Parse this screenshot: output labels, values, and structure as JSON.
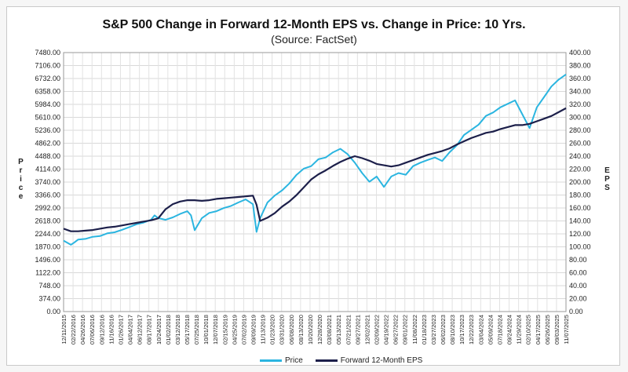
{
  "chart_data": {
    "type": "line",
    "title": "S&P 500 Change in Forward 12-Month EPS vs. Change in Price: 10 Yrs.",
    "subtitle": "(Source: FactSet)",
    "ylabel_left": "Price",
    "ylabel_right": "EPS",
    "ylim_left": [
      0,
      7480
    ],
    "ylim_right": [
      0,
      400
    ],
    "y_ticks_left": [
      "7480.00",
      "7106.00",
      "6732.00",
      "6358.00",
      "5984.00",
      "5610.00",
      "5236.00",
      "4862.00",
      "4488.00",
      "4114.00",
      "3740.00",
      "3366.00",
      "2992.00",
      "2618.00",
      "2244.00",
      "1870.00",
      "1496.00",
      "1122.00",
      "748.00",
      "374.00",
      "0.00"
    ],
    "y_ticks_right": [
      "400.00",
      "380.00",
      "360.00",
      "340.00",
      "320.00",
      "300.00",
      "280.00",
      "260.00",
      "240.00",
      "220.00",
      "200.00",
      "180.00",
      "160.00",
      "140.00",
      "120.00",
      "100.00",
      "80.00",
      "60.00",
      "40.00",
      "20.00",
      "0.00"
    ],
    "x_ticks": [
      "12/11/2015",
      "02/22/2016",
      "04/26/2016",
      "07/06/2016",
      "09/12/2016",
      "11/16/2016",
      "01/26/2017",
      "04/04/2017",
      "06/12/2017",
      "08/17/2017",
      "10/24/2017",
      "01/02/2018",
      "03/12/2018",
      "05/17/2018",
      "07/25/2018",
      "10/01/2018",
      "12/07/2018",
      "02/15/2019",
      "04/25/2019",
      "07/02/2019",
      "09/09/2019",
      "11/13/2019",
      "01/23/2020",
      "03/31/2020",
      "06/08/2020",
      "08/13/2020",
      "10/20/2020",
      "12/28/2020",
      "03/08/2021",
      "05/13/2021",
      "07/21/2021",
      "09/27/2021",
      "12/02/2021",
      "02/09/2022",
      "04/19/2022",
      "06/27/2022",
      "09/01/2022",
      "11/08/2022",
      "01/18/2023",
      "03/27/2023",
      "06/02/2023",
      "08/10/2023",
      "10/17/2023",
      "12/22/2023",
      "03/04/2024",
      "05/09/2024",
      "07/18/2024",
      "09/24/2024",
      "11/29/2024",
      "02/10/2025",
      "04/17/2025",
      "06/26/2025",
      "09/03/2025",
      "11/07/2025"
    ],
    "grid": true,
    "legend_placement": "bottom",
    "series": [
      {
        "name": "Price",
        "axis": "left",
        "color": "#2bb5e0",
        "points": [
          [
            0,
            2050
          ],
          [
            1,
            1930
          ],
          [
            1.5,
            2000
          ],
          [
            2,
            2080
          ],
          [
            3,
            2100
          ],
          [
            4,
            2160
          ],
          [
            5,
            2180
          ],
          [
            6,
            2260
          ],
          [
            7,
            2290
          ],
          [
            8,
            2360
          ],
          [
            9,
            2440
          ],
          [
            10,
            2520
          ],
          [
            11,
            2570
          ],
          [
            12,
            2650
          ],
          [
            12.5,
            2780
          ],
          [
            13,
            2700
          ],
          [
            14,
            2650
          ],
          [
            15,
            2720
          ],
          [
            16,
            2820
          ],
          [
            17,
            2900
          ],
          [
            17.5,
            2780
          ],
          [
            18,
            2350
          ],
          [
            19,
            2700
          ],
          [
            20,
            2850
          ],
          [
            21,
            2900
          ],
          [
            22,
            2990
          ],
          [
            23,
            3050
          ],
          [
            24,
            3150
          ],
          [
            25,
            3240
          ],
          [
            26,
            3100
          ],
          [
            26.5,
            2300
          ],
          [
            27,
            2700
          ],
          [
            28,
            3150
          ],
          [
            29,
            3350
          ],
          [
            30,
            3500
          ],
          [
            31,
            3700
          ],
          [
            32,
            3950
          ],
          [
            33,
            4130
          ],
          [
            34,
            4200
          ],
          [
            35,
            4400
          ],
          [
            36,
            4450
          ],
          [
            37,
            4600
          ],
          [
            38,
            4700
          ],
          [
            39,
            4550
          ],
          [
            40,
            4300
          ],
          [
            41,
            4000
          ],
          [
            42,
            3750
          ],
          [
            43,
            3900
          ],
          [
            44,
            3600
          ],
          [
            45,
            3900
          ],
          [
            46,
            4000
          ],
          [
            47,
            3950
          ],
          [
            48,
            4200
          ],
          [
            49,
            4300
          ],
          [
            50,
            4380
          ],
          [
            51,
            4450
          ],
          [
            52,
            4350
          ],
          [
            53,
            4600
          ],
          [
            54,
            4800
          ],
          [
            55,
            5100
          ],
          [
            56,
            5250
          ],
          [
            57,
            5400
          ],
          [
            58,
            5650
          ],
          [
            59,
            5750
          ],
          [
            60,
            5900
          ],
          [
            61,
            6000
          ],
          [
            62,
            6100
          ],
          [
            63,
            5700
          ],
          [
            64,
            5300
          ],
          [
            65,
            5900
          ],
          [
            66,
            6200
          ],
          [
            67,
            6500
          ],
          [
            68,
            6700
          ],
          [
            69,
            6850
          ]
        ]
      },
      {
        "name": "Forward 12-Month EPS",
        "axis": "right",
        "color": "#1c1f4a",
        "points": [
          [
            0,
            128
          ],
          [
            1,
            124
          ],
          [
            2,
            124
          ],
          [
            3,
            125
          ],
          [
            4,
            126
          ],
          [
            5,
            128
          ],
          [
            6,
            130
          ],
          [
            7,
            131
          ],
          [
            8,
            133
          ],
          [
            9,
            135
          ],
          [
            10,
            137
          ],
          [
            11,
            139
          ],
          [
            12,
            141
          ],
          [
            13,
            144
          ],
          [
            14,
            158
          ],
          [
            15,
            166
          ],
          [
            16,
            170
          ],
          [
            17,
            172
          ],
          [
            18,
            172
          ],
          [
            19,
            171
          ],
          [
            20,
            172
          ],
          [
            21,
            174
          ],
          [
            22,
            175
          ],
          [
            23,
            176
          ],
          [
            24,
            177
          ],
          [
            25,
            178
          ],
          [
            26,
            179
          ],
          [
            26.5,
            165
          ],
          [
            27,
            140
          ],
          [
            28,
            145
          ],
          [
            29,
            152
          ],
          [
            30,
            162
          ],
          [
            31,
            170
          ],
          [
            32,
            180
          ],
          [
            33,
            192
          ],
          [
            34,
            204
          ],
          [
            35,
            212
          ],
          [
            36,
            218
          ],
          [
            37,
            225
          ],
          [
            38,
            231
          ],
          [
            39,
            236
          ],
          [
            40,
            240
          ],
          [
            41,
            237
          ],
          [
            42,
            233
          ],
          [
            43,
            228
          ],
          [
            44,
            226
          ],
          [
            45,
            224
          ],
          [
            46,
            226
          ],
          [
            47,
            230
          ],
          [
            48,
            234
          ],
          [
            49,
            238
          ],
          [
            50,
            242
          ],
          [
            51,
            245
          ],
          [
            52,
            248
          ],
          [
            53,
            252
          ],
          [
            54,
            258
          ],
          [
            55,
            263
          ],
          [
            56,
            268
          ],
          [
            57,
            272
          ],
          [
            58,
            276
          ],
          [
            59,
            278
          ],
          [
            60,
            282
          ],
          [
            61,
            285
          ],
          [
            62,
            288
          ],
          [
            63,
            288
          ],
          [
            64,
            290
          ],
          [
            65,
            294
          ],
          [
            66,
            298
          ],
          [
            67,
            302
          ],
          [
            68,
            308
          ],
          [
            69,
            314
          ]
        ]
      }
    ]
  }
}
